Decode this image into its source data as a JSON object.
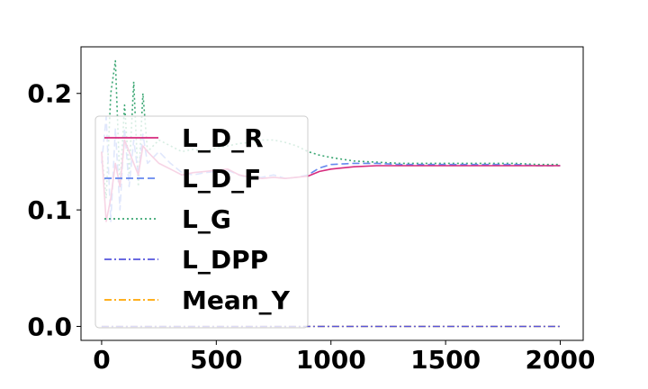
{
  "chart_data": {
    "type": "line",
    "title": "",
    "xlabel": "",
    "ylabel": "",
    "xlim": [
      -90,
      2100
    ],
    "ylim": [
      -0.012,
      0.24
    ],
    "x_ticks": [
      0,
      500,
      1000,
      1500,
      2000
    ],
    "x_tick_labels": [
      "0",
      "500",
      "1000",
      "1500",
      "2000"
    ],
    "y_ticks": [
      0.0,
      0.1,
      0.2
    ],
    "y_tick_labels": [
      "0.0",
      "0.1",
      "0.2"
    ],
    "grid": false,
    "legend_position": "left",
    "series": [
      {
        "name": "L_D_R",
        "color": "#d62a7d",
        "style": "solid",
        "x": [
          0,
          20,
          40,
          60,
          80,
          100,
          120,
          140,
          160,
          180,
          200,
          250,
          300,
          350,
          400,
          450,
          500,
          550,
          600,
          650,
          700,
          750,
          800,
          850,
          900,
          950,
          1000,
          1100,
          1200,
          1300,
          1400,
          1500,
          1600,
          1700,
          1800,
          1900,
          2000
        ],
        "values": [
          0.15,
          0.09,
          0.11,
          0.14,
          0.12,
          0.16,
          0.15,
          0.14,
          0.13,
          0.155,
          0.15,
          0.14,
          0.135,
          0.13,
          0.132,
          0.133,
          0.134,
          0.135,
          0.13,
          0.128,
          0.127,
          0.128,
          0.127,
          0.128,
          0.129,
          0.133,
          0.135,
          0.137,
          0.138,
          0.138,
          0.138,
          0.138,
          0.138,
          0.138,
          0.138,
          0.138,
          0.138
        ]
      },
      {
        "name": "L_D_F",
        "color": "#6688ee",
        "style": "dashed",
        "x": [
          0,
          20,
          40,
          60,
          80,
          100,
          120,
          140,
          160,
          180,
          200,
          250,
          300,
          350,
          400,
          450,
          500,
          550,
          600,
          650,
          700,
          750,
          800,
          850,
          900,
          950,
          1000,
          1100,
          1200,
          1300,
          1400,
          1500,
          1600,
          1700,
          1800,
          1900,
          2000
        ],
        "values": [
          0.14,
          0.18,
          0.09,
          0.17,
          0.1,
          0.17,
          0.12,
          0.16,
          0.13,
          0.165,
          0.14,
          0.15,
          0.14,
          0.132,
          0.13,
          0.132,
          0.133,
          0.134,
          0.13,
          0.127,
          0.128,
          0.13,
          0.127,
          0.128,
          0.13,
          0.136,
          0.139,
          0.14,
          0.14,
          0.139,
          0.139,
          0.139,
          0.139,
          0.139,
          0.139,
          0.138,
          0.138
        ]
      },
      {
        "name": "L_G",
        "color": "#3aa672",
        "style": "dotted",
        "x": [
          0,
          20,
          40,
          60,
          80,
          100,
          120,
          140,
          160,
          180,
          200,
          250,
          300,
          350,
          400,
          450,
          500,
          550,
          600,
          650,
          700,
          750,
          800,
          850,
          900,
          950,
          1000,
          1100,
          1200,
          1300,
          1400,
          1500,
          1600,
          1700,
          1800,
          1900,
          2000
        ],
        "values": [
          0.15,
          0.11,
          0.2,
          0.228,
          0.12,
          0.19,
          0.13,
          0.21,
          0.12,
          0.2,
          0.15,
          0.16,
          0.155,
          0.15,
          0.152,
          0.15,
          0.153,
          0.155,
          0.157,
          0.158,
          0.16,
          0.16,
          0.158,
          0.155,
          0.15,
          0.147,
          0.145,
          0.142,
          0.141,
          0.14,
          0.14,
          0.14,
          0.14,
          0.14,
          0.14,
          0.139,
          0.139
        ]
      },
      {
        "name": "L_DPP",
        "color": "#5555dd",
        "style": "dashdot",
        "x": [
          0,
          2000
        ],
        "values": [
          0.0,
          0.0
        ]
      },
      {
        "name": "Mean_Y",
        "color": "#ffa500",
        "style": "dashdot",
        "x": [
          0,
          2000
        ],
        "values": [
          0.0,
          0.0
        ]
      }
    ]
  }
}
